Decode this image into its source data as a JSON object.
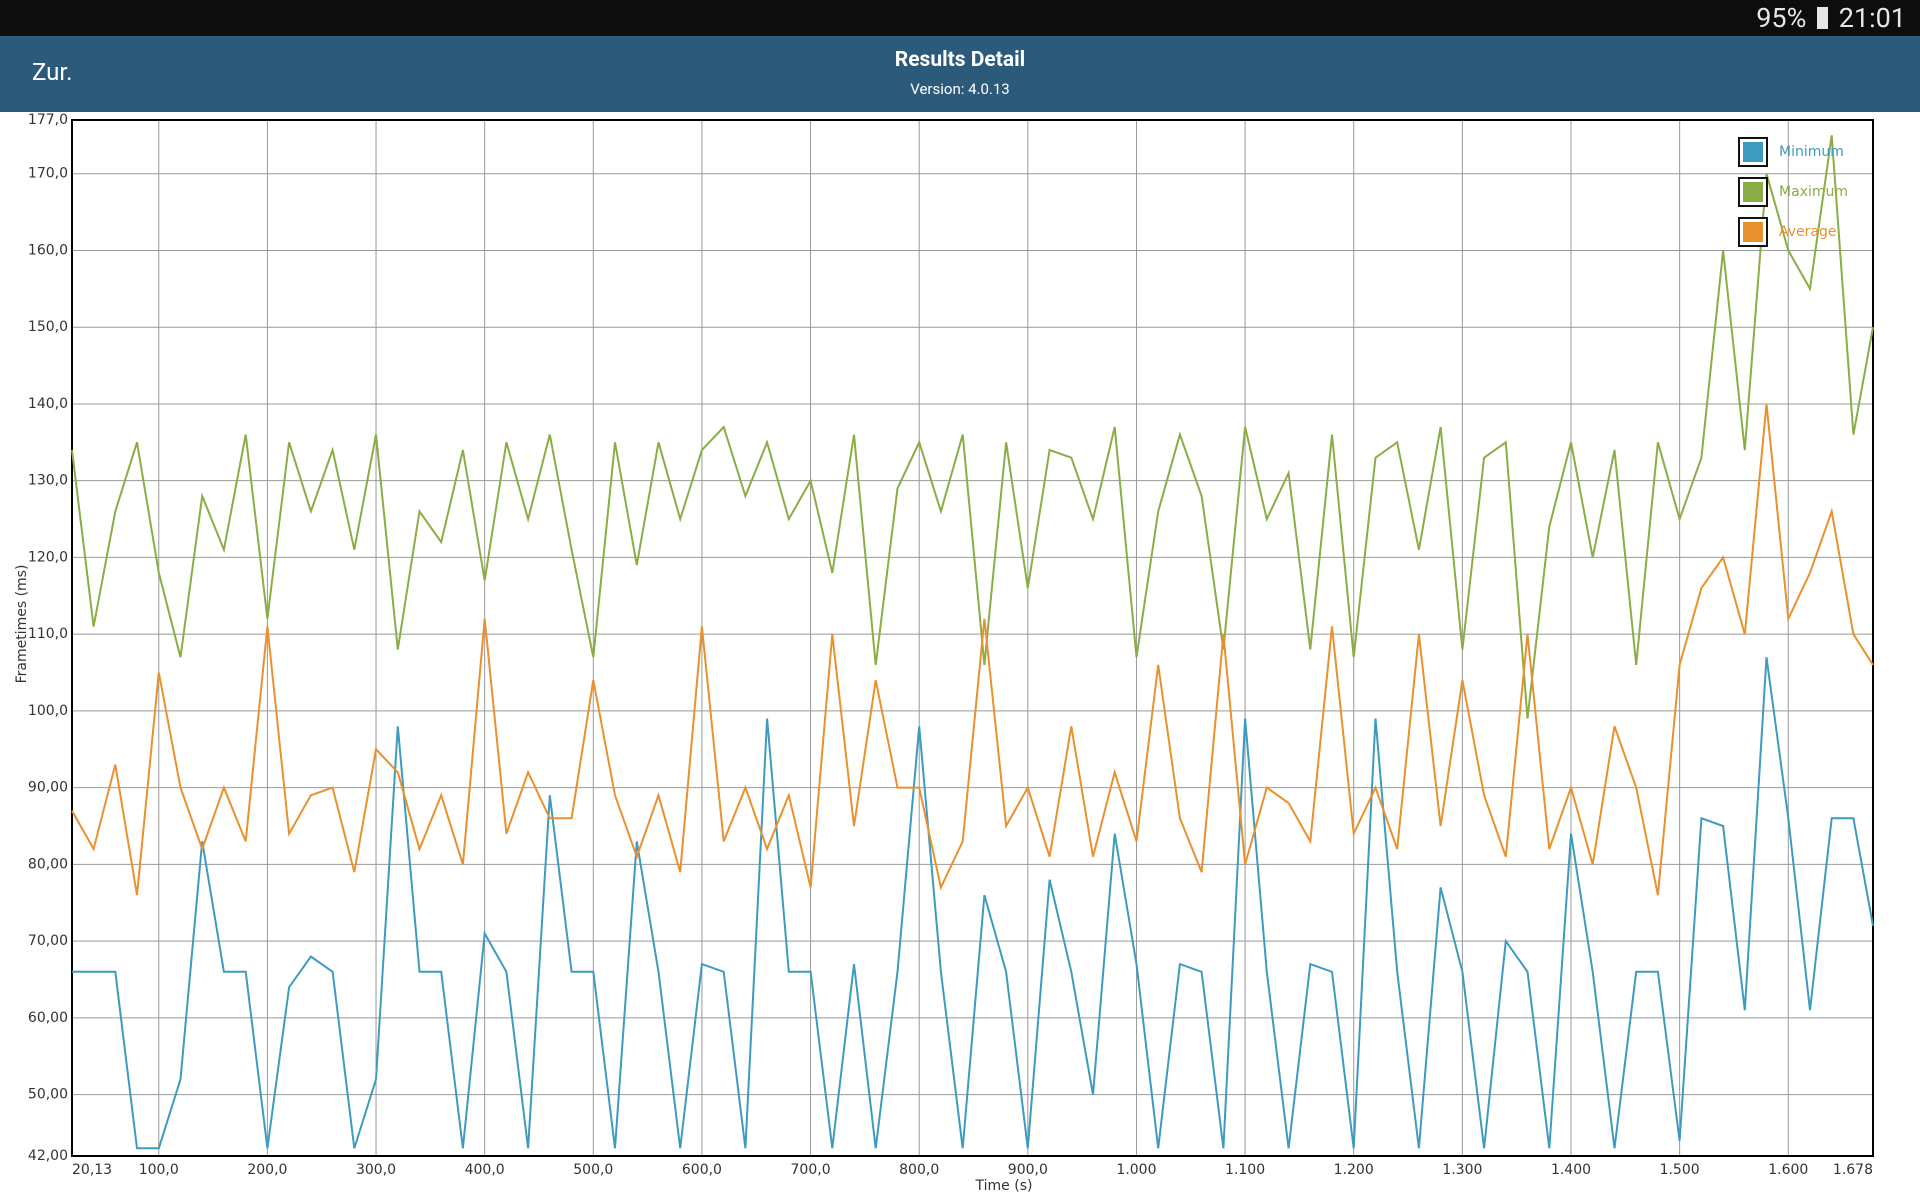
{
  "status_bar": {
    "battery": "95%",
    "time": "21:01"
  },
  "header": {
    "back": "Zur.",
    "title": "Results Detail",
    "subtitle": "Version: 4.0.13"
  },
  "chart_data": {
    "type": "line",
    "xlabel": "Time (s)",
    "ylabel": "Frametimes (ms)",
    "x": [
      20.13,
      40,
      60,
      80,
      100,
      120,
      140,
      160,
      180,
      200,
      220,
      240,
      260,
      280,
      300,
      320,
      340,
      360,
      380,
      400,
      420,
      440,
      460,
      480,
      500,
      520,
      540,
      560,
      580,
      600,
      620,
      640,
      660,
      680,
      700,
      720,
      740,
      760,
      780,
      800,
      820,
      840,
      860,
      880,
      900,
      920,
      940,
      960,
      980,
      1000,
      1020,
      1040,
      1060,
      1080,
      1100,
      1120,
      1140,
      1160,
      1180,
      1200,
      1220,
      1240,
      1260,
      1280,
      1300,
      1320,
      1340,
      1360,
      1380,
      1400,
      1420,
      1440,
      1460,
      1480,
      1500,
      1520,
      1540,
      1560,
      1580,
      1600,
      1620,
      1640,
      1660,
      1678
    ],
    "series": [
      {
        "name": "Minimum",
        "color": "#3d9bbf",
        "values": [
          66,
          66,
          66,
          43,
          43,
          52,
          83,
          66,
          66,
          43,
          64,
          68,
          66,
          43,
          52,
          98,
          66,
          66,
          43,
          71,
          66,
          43,
          89,
          66,
          66,
          43,
          83,
          66,
          43,
          67,
          66,
          43,
          99,
          66,
          66,
          43,
          67,
          43,
          66,
          98,
          66,
          43,
          76,
          66,
          43,
          78,
          66,
          50,
          84,
          67,
          43,
          67,
          66,
          43,
          99,
          66,
          43,
          67,
          66,
          43,
          99,
          66,
          43,
          77,
          66,
          43,
          70,
          66,
          43,
          84,
          66,
          43,
          66,
          66,
          44,
          86,
          85,
          61,
          107,
          86,
          61,
          86,
          86,
          72
        ]
      },
      {
        "name": "Maximum",
        "color": "#8aad45",
        "values": [
          134,
          111,
          126,
          135,
          118,
          107,
          128,
          121,
          136,
          112,
          135,
          126,
          134,
          121,
          136,
          108,
          126,
          122,
          134,
          117,
          135,
          125,
          136,
          121,
          107,
          135,
          119,
          135,
          125,
          134,
          137,
          128,
          135,
          125,
          130,
          118,
          136,
          106,
          129,
          135,
          126,
          136,
          106,
          135,
          116,
          134,
          133,
          125,
          137,
          107,
          126,
          136,
          128,
          108,
          137,
          125,
          131,
          108,
          136,
          107,
          133,
          135,
          121,
          137,
          108,
          133,
          135,
          99,
          124,
          135,
          120,
          134,
          106,
          135,
          125,
          133,
          160,
          134,
          170,
          160,
          155,
          175,
          136,
          150
        ]
      },
      {
        "name": "Average",
        "color": "#e8912e",
        "values": [
          87,
          82,
          93,
          76,
          105,
          90,
          82,
          90,
          83,
          111,
          84,
          89,
          90,
          79,
          95,
          92,
          82,
          89,
          80,
          112,
          84,
          92,
          86,
          86,
          104,
          89,
          81,
          89,
          79,
          111,
          83,
          90,
          82,
          89,
          77,
          110,
          85,
          104,
          90,
          90,
          77,
          83,
          112,
          85,
          90,
          81,
          98,
          81,
          92,
          83,
          106,
          86,
          79,
          110,
          80,
          90,
          88,
          83,
          111,
          84,
          90,
          82,
          110,
          85,
          104,
          89,
          81,
          110,
          82,
          90,
          80,
          98,
          90,
          76,
          106,
          116,
          120,
          110,
          140,
          112,
          118,
          126,
          110,
          106
        ]
      }
    ],
    "xlim": [
      20.13,
      1678
    ],
    "ylim": [
      42,
      177
    ],
    "xticks": [
      {
        "value": 20.13,
        "label": "20,13"
      },
      {
        "value": 100,
        "label": "100,0"
      },
      {
        "value": 200,
        "label": "200,0"
      },
      {
        "value": 300,
        "label": "300,0"
      },
      {
        "value": 400,
        "label": "400,0"
      },
      {
        "value": 500,
        "label": "500,0"
      },
      {
        "value": 600,
        "label": "600,0"
      },
      {
        "value": 700,
        "label": "700,0"
      },
      {
        "value": 800,
        "label": "800,0"
      },
      {
        "value": 900,
        "label": "900,0"
      },
      {
        "value": 1000,
        "label": "1.000"
      },
      {
        "value": 1100,
        "label": "1.100"
      },
      {
        "value": 1200,
        "label": "1.200"
      },
      {
        "value": 1300,
        "label": "1.300"
      },
      {
        "value": 1400,
        "label": "1.400"
      },
      {
        "value": 1500,
        "label": "1.500"
      },
      {
        "value": 1600,
        "label": "1.600"
      },
      {
        "value": 1678,
        "label": "1.678"
      }
    ],
    "yticks": [
      {
        "value": 42,
        "label": "42,00"
      },
      {
        "value": 50,
        "label": "50,00"
      },
      {
        "value": 60,
        "label": "60,00"
      },
      {
        "value": 70,
        "label": "70,00"
      },
      {
        "value": 80,
        "label": "80,00"
      },
      {
        "value": 90,
        "label": "90,00"
      },
      {
        "value": 100,
        "label": "100,0"
      },
      {
        "value": 110,
        "label": "110,0"
      },
      {
        "value": 120,
        "label": "120,0"
      },
      {
        "value": 130,
        "label": "130,0"
      },
      {
        "value": 140,
        "label": "140,0"
      },
      {
        "value": 150,
        "label": "150,0"
      },
      {
        "value": 160,
        "label": "160,0"
      },
      {
        "value": 170,
        "label": "170,0"
      },
      {
        "value": 177,
        "label": "177,0"
      }
    ],
    "grid": true,
    "legend": "top-right"
  }
}
